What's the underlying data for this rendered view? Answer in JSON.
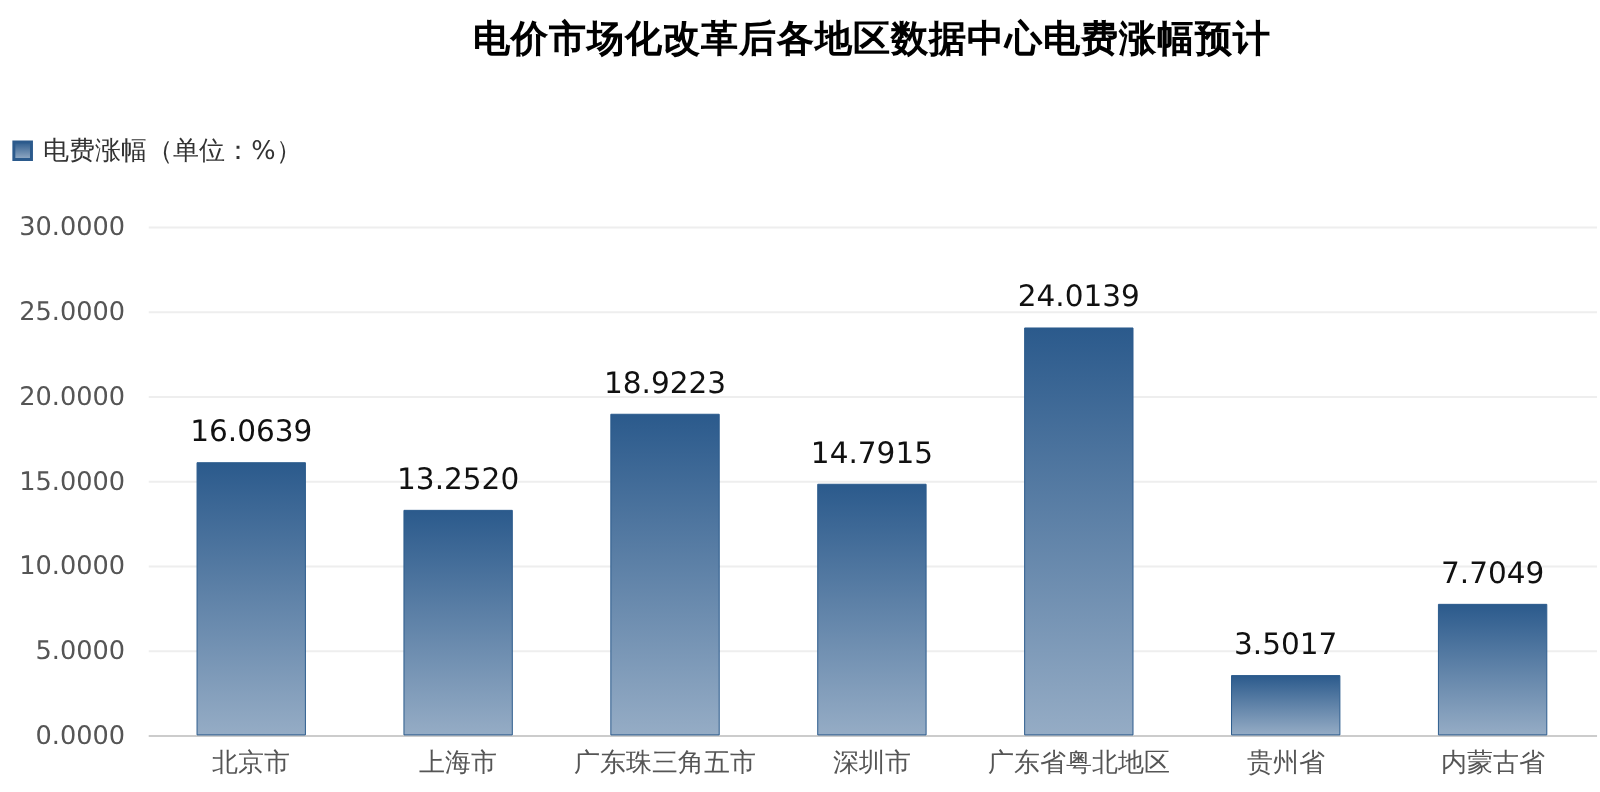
{
  "chart_data": {
    "type": "bar",
    "title": "电价市场化改革后各地区数据中心电费涨幅预计",
    "categories": [
      "北京市",
      "上海市",
      "广东珠三角五市",
      "深圳市",
      "广东省粤北地区",
      "贵州省",
      "内蒙古省"
    ],
    "series": [
      {
        "name": "电费涨幅（单位：%）",
        "color": "#2b5a8c",
        "values": [
          16.0639,
          13.252,
          18.9223,
          14.7915,
          24.0139,
          3.5017,
          7.7049
        ],
        "value_labels": [
          "16.0639",
          "13.2520",
          "18.9223",
          "14.7915",
          "24.0139",
          "3.5017",
          "7.7049"
        ]
      }
    ],
    "ylim": [
      0,
      30
    ],
    "yticks": [
      {
        "value": 0,
        "label": "0.0000"
      },
      {
        "value": 5,
        "label": "5.0000"
      },
      {
        "value": 10,
        "label": "10.0000"
      },
      {
        "value": 15,
        "label": "15.0000"
      },
      {
        "value": 20,
        "label": "20.0000"
      },
      {
        "value": 25,
        "label": "25.0000"
      },
      {
        "value": 30,
        "label": "30.0000"
      }
    ],
    "grid": "y",
    "legend": "top left"
  }
}
